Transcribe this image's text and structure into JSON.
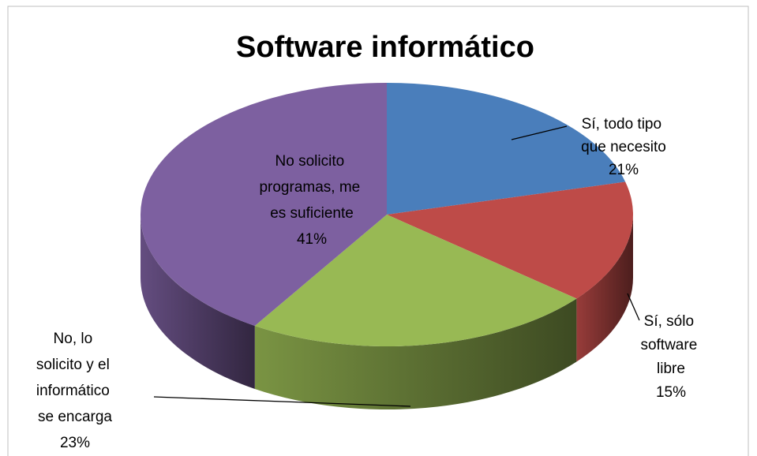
{
  "chart_data": {
    "type": "pie3d",
    "title": "Software informático",
    "categories": [
      "Sí, todo tipo que necesito",
      "Sí, sólo software libre",
      "No, lo solicito y el informático se encarga",
      "No solicito programas, me es suficiente"
    ],
    "values": [
      21,
      15,
      23,
      41
    ],
    "value_labels": [
      "21%",
      "15%",
      "23%",
      "41%"
    ],
    "colors": [
      "#4a7ebb",
      "#be4b48",
      "#98b954",
      "#7d60a0"
    ]
  }
}
